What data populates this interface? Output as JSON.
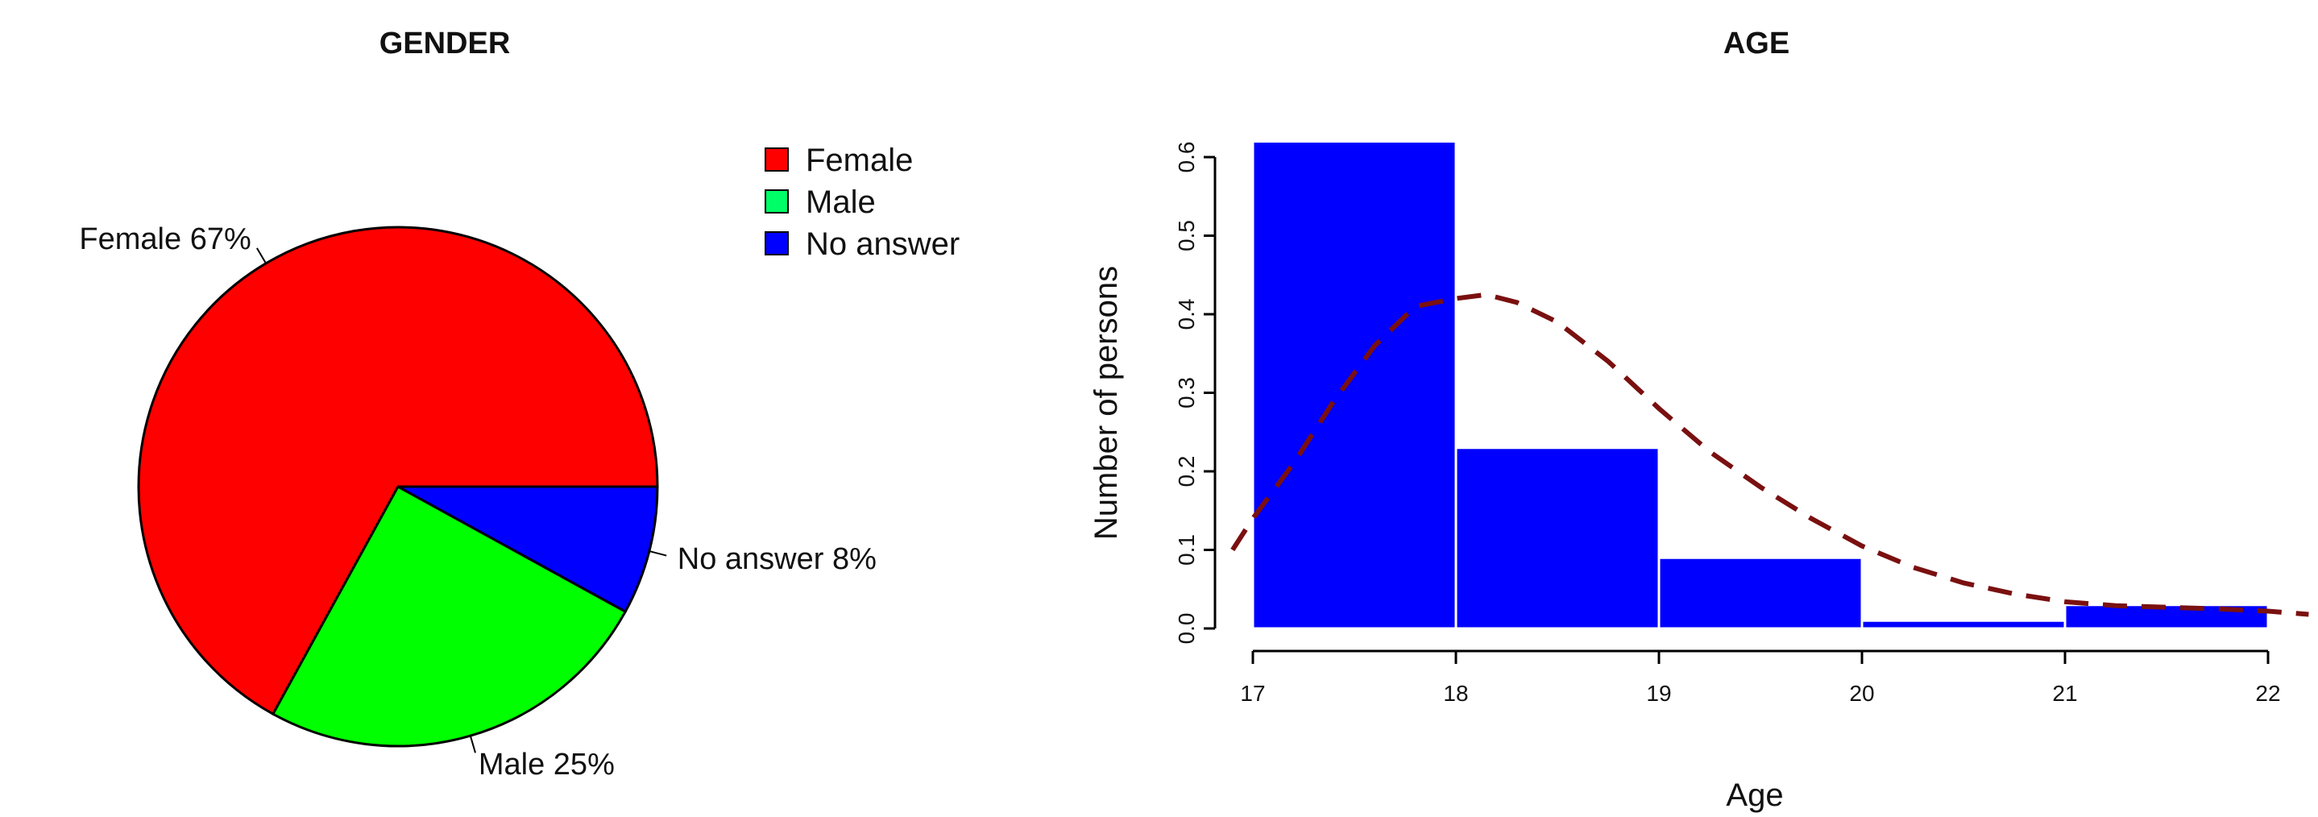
{
  "chart_data": [
    {
      "type": "pie",
      "title": "GENDER",
      "slices": [
        {
          "label": "Female",
          "value": 67,
          "slice_label": "Female 67%",
          "color": "#ff0000"
        },
        {
          "label": "Male",
          "value": 25,
          "slice_label": "Male 25%",
          "color": "#00ff00"
        },
        {
          "label": "No answer",
          "value": 8,
          "slice_label": "No answer 8%",
          "color": "#0000ff"
        }
      ],
      "legend": {
        "placement": "top-right",
        "items": [
          {
            "label": "Female",
            "color": "#ff0000"
          },
          {
            "label": "Male",
            "color": "#00ff66"
          },
          {
            "label": "No answer",
            "color": "#0000ff"
          }
        ]
      }
    },
    {
      "type": "bar",
      "subtype": "histogram with density curve",
      "title": "AGE",
      "xlabel": "Age",
      "ylabel": "Number of persons",
      "xlim": [
        17,
        22.2
      ],
      "ylim": [
        0,
        0.62
      ],
      "xticks": [
        "17",
        "18",
        "19",
        "20",
        "21",
        "22"
      ],
      "yticks": [
        "0.0",
        "0.1",
        "0.2",
        "0.3",
        "0.4",
        "0.5",
        "0.6"
      ],
      "bins": [
        {
          "from": 17,
          "to": 18,
          "value": 0.62
        },
        {
          "from": 18,
          "to": 19,
          "value": 0.23
        },
        {
          "from": 19,
          "to": 20,
          "value": 0.09
        },
        {
          "from": 20,
          "to": 21,
          "value": 0.01
        },
        {
          "from": 21,
          "to": 22,
          "value": 0.03
        }
      ],
      "bar_color": "#0000ff",
      "density_curve": {
        "style": "dashed",
        "color": "#7a1010",
        "x": [
          16.9,
          17.0,
          17.2,
          17.4,
          17.6,
          17.8,
          18.0,
          18.15,
          18.3,
          18.5,
          18.75,
          19.0,
          19.25,
          19.5,
          19.75,
          20.0,
          20.25,
          20.5,
          20.75,
          21.0,
          21.25,
          21.5,
          21.75,
          22.0,
          22.2
        ],
        "y": [
          0.1,
          0.14,
          0.21,
          0.29,
          0.36,
          0.41,
          0.42,
          0.425,
          0.415,
          0.39,
          0.34,
          0.28,
          0.225,
          0.18,
          0.14,
          0.105,
          0.078,
          0.058,
          0.044,
          0.034,
          0.029,
          0.027,
          0.025,
          0.022,
          0.018
        ]
      }
    }
  ]
}
